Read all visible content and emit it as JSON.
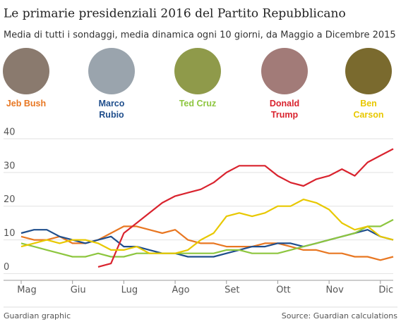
{
  "chart_data": {
    "type": "line",
    "title": "Le primarie presidenziali 2016 del Partito Repubblicano",
    "subtitle": "Media di tutti i sondaggi, media dinamica ogni 10 giorni, da Maggio a Dicembre 2015",
    "categories": [
      "Mag",
      null,
      null,
      null,
      "Giu",
      null,
      null,
      null,
      "Lug",
      null,
      null,
      null,
      "Ago",
      null,
      null,
      null,
      "Set",
      null,
      null,
      null,
      "Ott",
      null,
      null,
      null,
      "Nov",
      null,
      null,
      null,
      "Dic",
      null
    ],
    "series": [
      {
        "name": "Jeb Bush",
        "color": "#e87722",
        "values": [
          11,
          10,
          10,
          11,
          9,
          9,
          10,
          12,
          14,
          14,
          13,
          12,
          13,
          10,
          9,
          9,
          8,
          8,
          8,
          9,
          9,
          8,
          7,
          7,
          6,
          6,
          5,
          5,
          4,
          5
        ]
      },
      {
        "name": "Marco Rubio",
        "color": "#1f4e8c",
        "values": [
          12,
          13,
          13,
          11,
          10,
          9,
          10,
          11,
          8,
          8,
          7,
          6,
          6,
          5,
          5,
          5,
          6,
          7,
          8,
          8,
          9,
          9,
          8,
          9,
          10,
          11,
          12,
          13,
          11,
          10
        ]
      },
      {
        "name": "Ted Cruz",
        "color": "#8dc63f",
        "values": [
          9,
          8,
          7,
          6,
          5,
          5,
          6,
          5,
          5,
          6,
          6,
          6,
          6,
          6,
          6,
          6,
          7,
          7,
          6,
          6,
          6,
          7,
          8,
          9,
          10,
          11,
          12,
          14,
          14,
          16
        ]
      },
      {
        "name": "Donald Trump",
        "color": "#d9232e",
        "values": [
          null,
          null,
          null,
          null,
          null,
          null,
          2,
          3,
          12,
          15,
          18,
          21,
          23,
          24,
          25,
          27,
          30,
          32,
          32,
          32,
          29,
          27,
          26,
          28,
          29,
          31,
          29,
          33,
          35,
          37
        ]
      },
      {
        "name": "Ben Carson",
        "color": "#e8c800",
        "values": [
          8,
          9,
          10,
          9,
          10,
          10,
          9,
          7,
          7,
          8,
          6,
          6,
          6,
          7,
          10,
          12,
          17,
          18,
          17,
          18,
          20,
          20,
          22,
          21,
          19,
          15,
          13,
          14,
          11,
          10
        ]
      }
    ],
    "ylim": [
      -2,
      40
    ],
    "yticks": [
      0,
      10,
      20,
      30,
      40
    ],
    "grid": true,
    "footer_left": "Guardian graphic",
    "footer_right": "Source: Guardian calculations"
  }
}
